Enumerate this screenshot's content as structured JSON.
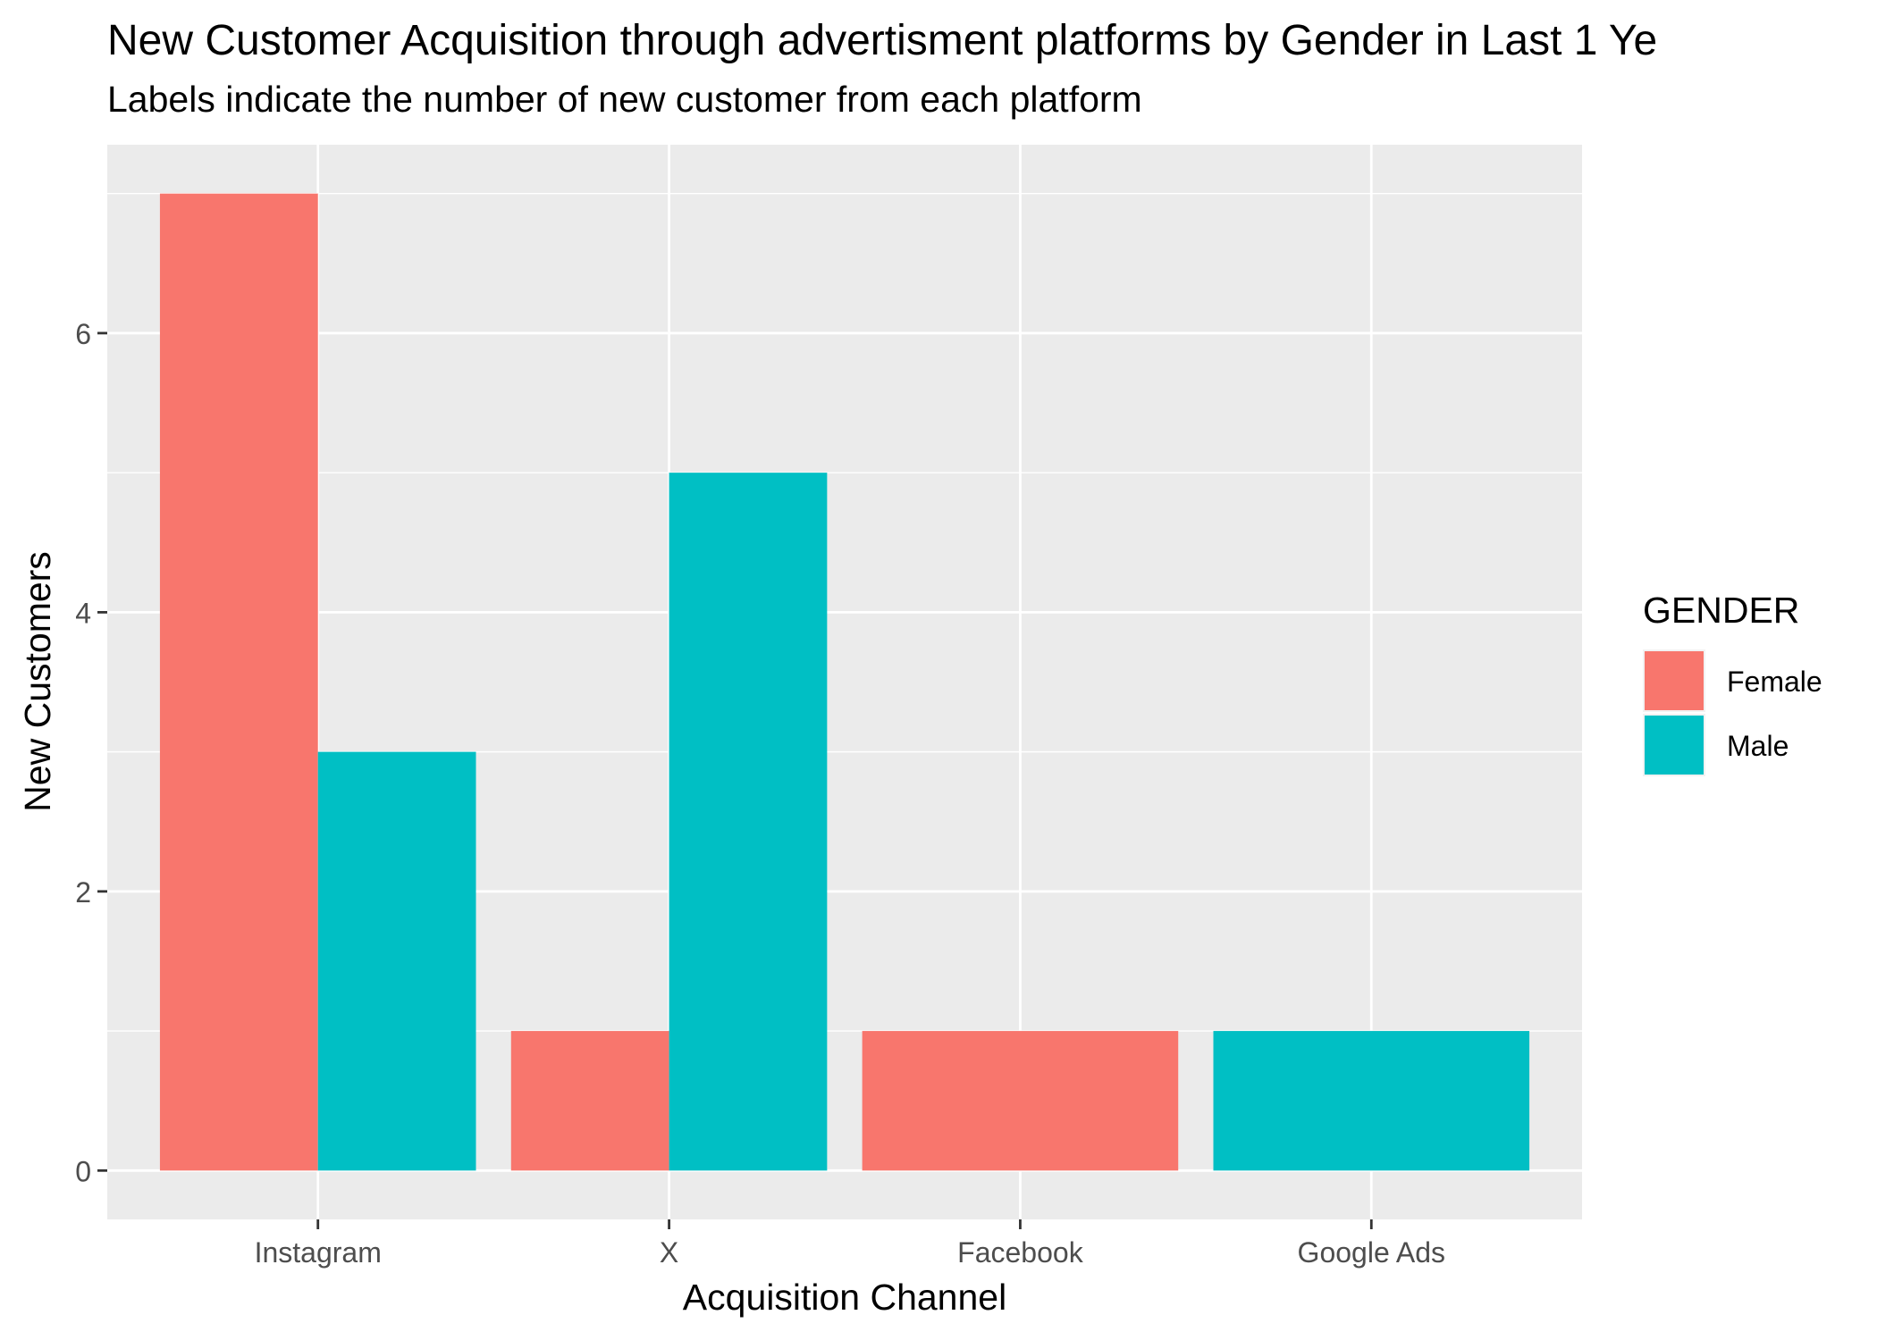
{
  "chart_data": {
    "type": "bar",
    "title": "New Customer Acquisition through advertisment platforms by Gender in Last 1 Ye",
    "subtitle": "Labels indicate the number of new customer from each platform",
    "xlabel": "Acquisition Channel",
    "ylabel": "New Customers",
    "categories": [
      "Instagram",
      "X",
      "Facebook",
      "Google Ads"
    ],
    "series": [
      {
        "name": "Female",
        "color": "#F8766D",
        "values": [
          7,
          1,
          1,
          null
        ]
      },
      {
        "name": "Male",
        "color": "#00BFC4",
        "values": [
          3,
          5,
          null,
          1
        ]
      }
    ],
    "ylim": [
      -0.35,
      7.35
    ],
    "yticks": [
      0,
      2,
      4,
      6
    ],
    "grid": true,
    "legend": {
      "title": "GENDER",
      "position": "right"
    },
    "colors": {
      "panel_background": "#EBEBEB",
      "gridline": "#FFFFFF"
    }
  }
}
